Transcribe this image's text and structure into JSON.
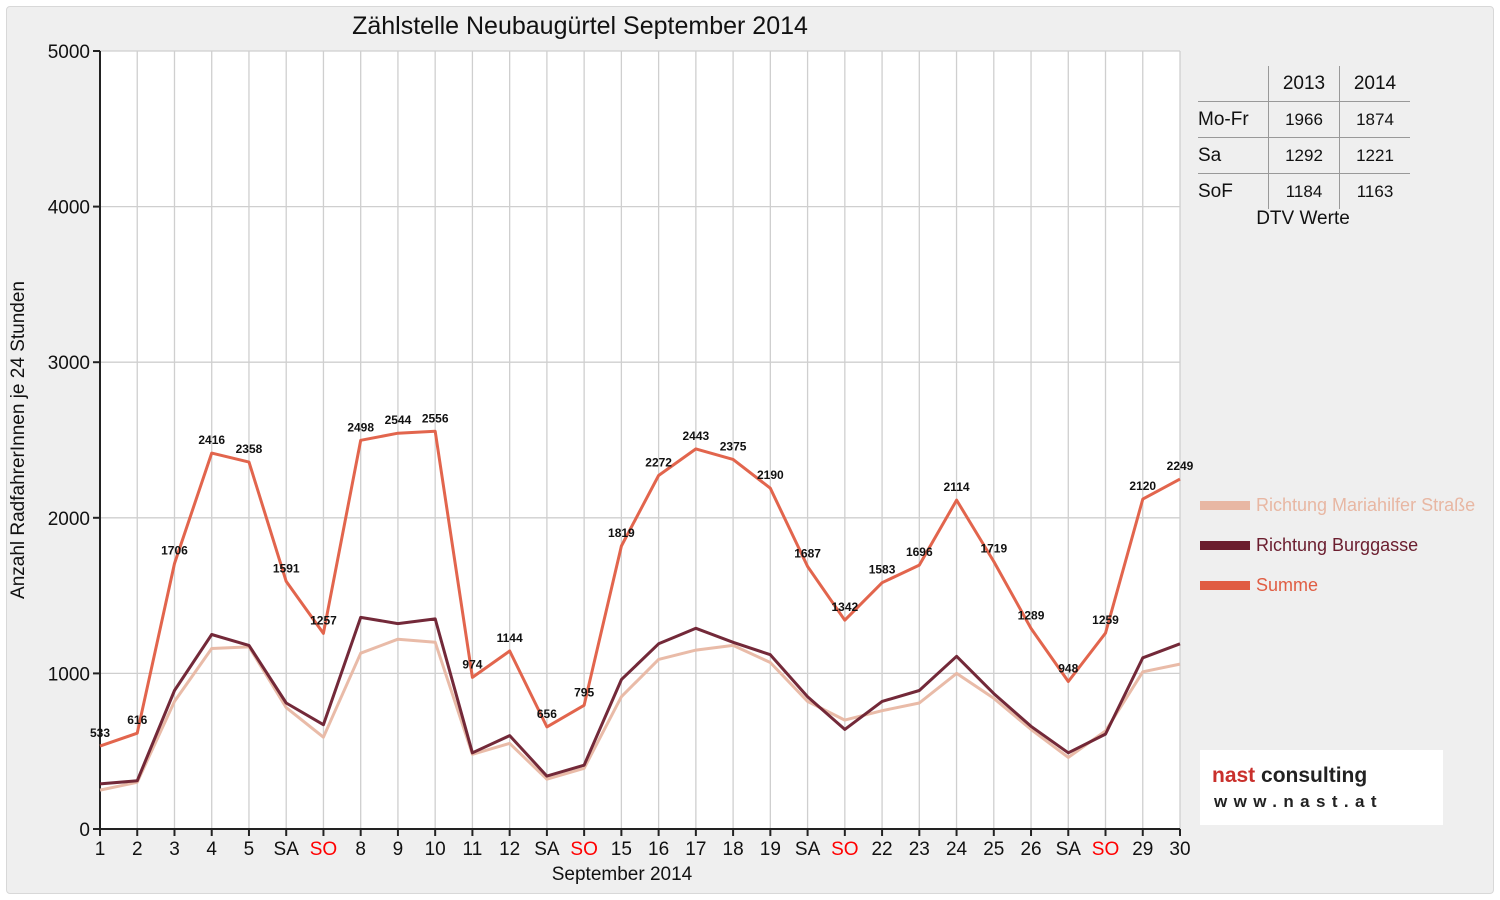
{
  "chart_data": {
    "type": "line",
    "title": "Zählstelle Neubaugürtel September 2014",
    "xlabel": "September 2014",
    "ylabel": "Anzahl RadfahrerInnen je 24 Stunden",
    "ylim": [
      0,
      5000
    ],
    "yticks": [
      0,
      1000,
      2000,
      3000,
      4000,
      5000
    ],
    "grid": true,
    "legend_position": "right",
    "categories": [
      "1",
      "2",
      "3",
      "4",
      "5",
      "SA",
      "SO",
      "8",
      "9",
      "10",
      "11",
      "12",
      "SA",
      "SO",
      "15",
      "16",
      "17",
      "18",
      "19",
      "SA",
      "SO",
      "22",
      "23",
      "24",
      "25",
      "26",
      "SA",
      "SO",
      "29",
      "30"
    ],
    "category_colors": [
      "",
      "",
      "",
      "",
      "",
      "",
      "#ff0000",
      "",
      "",
      "",
      "",
      "",
      "",
      "#ff0000",
      "",
      "",
      "",
      "",
      "",
      "",
      "#ff0000",
      "",
      "",
      "",
      "",
      "",
      "",
      "#ff0000",
      "",
      ""
    ],
    "series": [
      {
        "name": "Richtung Mariahilfer Straße",
        "color": "#e8b7a3",
        "values": [
          250,
          300,
          820,
          1160,
          1170,
          780,
          590,
          1130,
          1220,
          1200,
          480,
          550,
          320,
          390,
          850,
          1090,
          1150,
          1180,
          1070,
          820,
          700,
          760,
          810,
          1000,
          840,
          640,
          460,
          630,
          1010,
          1060
        ]
      },
      {
        "name": "Richtung Burggasse",
        "color": "#6b1d2e",
        "values": [
          290,
          310,
          890,
          1250,
          1180,
          810,
          670,
          1360,
          1320,
          1350,
          490,
          600,
          340,
          410,
          960,
          1190,
          1290,
          1200,
          1120,
          850,
          640,
          820,
          890,
          1110,
          870,
          660,
          490,
          610,
          1100,
          1190
        ]
      },
      {
        "name": "Summe",
        "color": "#e05d43",
        "values": [
          533,
          616,
          1706,
          2416,
          2358,
          1591,
          1257,
          2498,
          2544,
          2556,
          974,
          1144,
          656,
          795,
          1819,
          2272,
          2443,
          2375,
          2190,
          1687,
          1342,
          1583,
          1696,
          2114,
          1719,
          1289,
          948,
          1259,
          2120,
          2249
        ]
      }
    ],
    "data_labels": [
      "533",
      "616",
      "1706",
      "2416",
      "2358",
      "1591",
      "1257",
      "2498",
      "2544",
      "2556",
      "974",
      "1144",
      "656",
      "795",
      "1819",
      "2272",
      "2443",
      "2375",
      "2190",
      "1687",
      "1342",
      "1583",
      "1696",
      "2114",
      "1719",
      "1289",
      "948",
      "1259",
      "2120",
      "2249"
    ]
  },
  "dtv_table": {
    "col_headers": [
      "2013",
      "2014"
    ],
    "rows": [
      {
        "label": "Mo-Fr",
        "v2013": "1966",
        "v2014": "1874"
      },
      {
        "label": "Sa",
        "v2013": "1292",
        "v2014": "1221"
      },
      {
        "label": "SoF",
        "v2013": "1184",
        "v2014": "1163"
      }
    ],
    "caption": "DTV Werte"
  },
  "logo": {
    "name_part1": "nast",
    "name_part2": " consulting",
    "url": "www.nast.at",
    "accent_color": "#c9302c"
  }
}
